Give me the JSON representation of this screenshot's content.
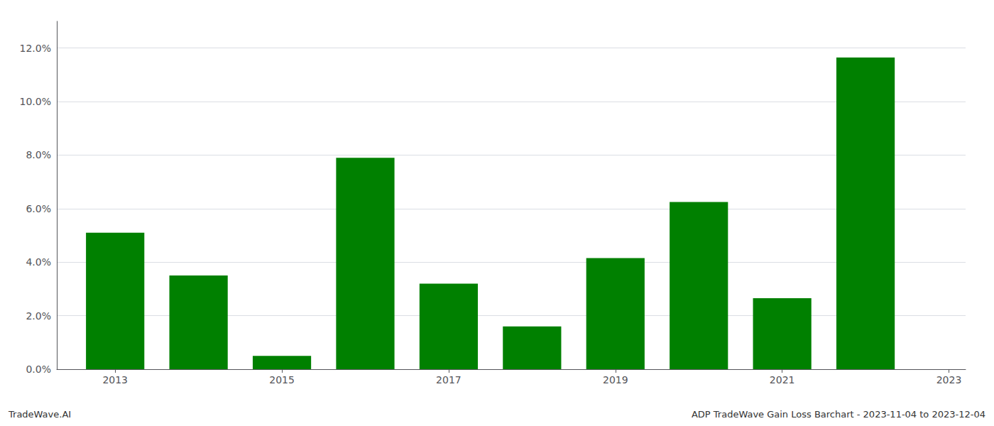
{
  "chart_data": {
    "type": "bar",
    "x": [
      2013,
      2014,
      2015,
      2016,
      2017,
      2018,
      2019,
      2020,
      2021,
      2022
    ],
    "values": [
      0.051,
      0.035,
      0.005,
      0.079,
      0.032,
      0.016,
      0.0415,
      0.0625,
      0.0265,
      0.1165
    ],
    "color": "#008000",
    "xlim": [
      2012.3,
      2023.2
    ],
    "xticks": [
      2013,
      2015,
      2017,
      2019,
      2021,
      2023
    ],
    "ylim": [
      0,
      0.13
    ],
    "yticks": [
      {
        "value": 0,
        "label": "0.0%"
      },
      {
        "value": 0.02,
        "label": "2.0%"
      },
      {
        "value": 0.04,
        "label": "4.0%"
      },
      {
        "value": 0.06,
        "label": "6.0%"
      },
      {
        "value": 0.08,
        "label": "8.0%"
      },
      {
        "value": 0.1,
        "label": "10.0%"
      },
      {
        "value": 0.12,
        "label": "12.0%"
      }
    ],
    "grid": true,
    "annotations": [
      "TradeWave.AI",
      "ADP TradeWave Gain Loss Barchart - 2023-11-04 to 2023-12-04"
    ]
  }
}
